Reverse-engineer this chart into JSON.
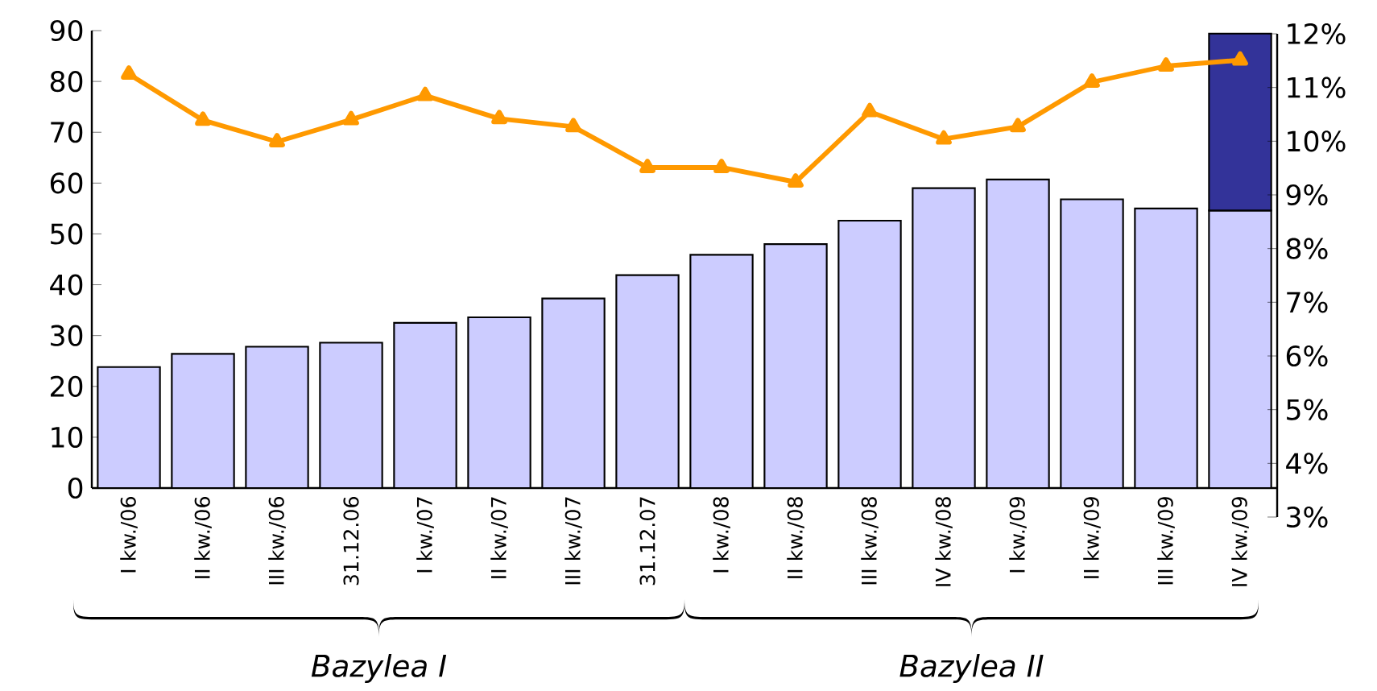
{
  "chart_data": {
    "type": "bar",
    "stacked": true,
    "categories": [
      "I kw./06",
      "II kw./06",
      "III kw./06",
      "31.12.06",
      "I kw./07",
      "II kw./07",
      "III kw./07",
      "31.12.07",
      "I kw./08",
      "II kw./08",
      "III kw./08",
      "IV kw./08",
      "I kw./09",
      "II kw./09",
      "III kw./09",
      "IV kw./09"
    ],
    "series": [
      {
        "color": "#ccccff",
        "values": [
          23.8,
          26.4,
          27.8,
          28.6,
          32.5,
          33.6,
          37.3,
          41.9,
          45.9,
          48.0,
          52.6,
          59.0,
          60.7,
          56.8,
          55.0,
          54.6
        ]
      },
      {
        "color": "#333399",
        "values": [
          null,
          null,
          null,
          null,
          null,
          null,
          null,
          null,
          null,
          null,
          null,
          null,
          null,
          null,
          null,
          34.8
        ]
      },
      {
        "type": "line",
        "axis": "y2",
        "color": "#ff9900",
        "values": [
          11.25,
          10.39,
          9.99,
          10.4,
          10.85,
          10.42,
          10.27,
          9.51,
          9.51,
          9.24,
          10.55,
          10.04,
          10.27,
          11.1,
          11.4,
          11.51
        ]
      }
    ],
    "marker": "triangle",
    "ylim": [
      0,
      90
    ],
    "yticks": [
      0,
      10,
      20,
      30,
      40,
      50,
      60,
      70,
      80,
      90
    ],
    "y2lim": [
      3,
      12
    ],
    "y2ticks": [
      {
        "value": 3,
        "label": "3%"
      },
      {
        "value": 4,
        "label": "4%"
      },
      {
        "value": 5,
        "label": "5%"
      },
      {
        "value": 6,
        "label": "6%"
      },
      {
        "value": 7,
        "label": "7%"
      },
      {
        "value": 8,
        "label": "8%"
      },
      {
        "value": 9,
        "label": "9%"
      },
      {
        "value": 10,
        "label": "10%"
      },
      {
        "value": 11,
        "label": "11%"
      },
      {
        "value": 12,
        "label": "12%"
      }
    ],
    "annotations": [
      "Bazylea I",
      "Bazylea II"
    ]
  }
}
